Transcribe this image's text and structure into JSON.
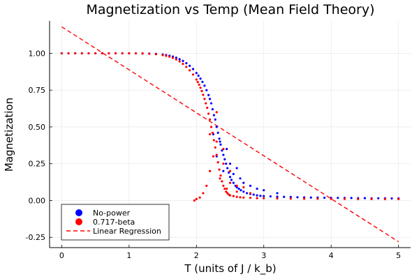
{
  "chart_data": {
    "type": "scatter",
    "title": "Magnetization vs Temp (Mean Field Theory)",
    "xlabel": "T (units of J / k_b)",
    "ylabel": "Magnetization",
    "xlim": [
      -0.18,
      5.18
    ],
    "ylim": [
      -0.32,
      1.22
    ],
    "xticks": [
      0,
      1,
      2,
      3,
      4,
      5
    ],
    "xtick_labels": [
      "0",
      "1",
      "2",
      "3",
      "4",
      "5"
    ],
    "yticks": [
      -0.25,
      0.0,
      0.25,
      0.5,
      0.75,
      1.0
    ],
    "ytick_labels": [
      "-0.25",
      "0.00",
      "0.25",
      "0.50",
      "0.75",
      "1.00"
    ],
    "grid": true,
    "legend_position": "bottom-left",
    "series": [
      {
        "name": "No-power",
        "kind": "scatter",
        "color": "#0000ff",
        "x": [
          0.0,
          0.1,
          0.2,
          0.3,
          0.4,
          0.5,
          0.6,
          0.7,
          0.8,
          0.9,
          1.0,
          1.1,
          1.2,
          1.3,
          1.4,
          1.5,
          1.55,
          1.6,
          1.65,
          1.7,
          1.75,
          1.8,
          1.85,
          1.9,
          1.95,
          2.0,
          2.03,
          2.06,
          2.09,
          2.12,
          2.15,
          2.18,
          2.2,
          2.22,
          2.24,
          2.26,
          2.28,
          2.3,
          2.32,
          2.34,
          2.36,
          2.38,
          2.4,
          2.42,
          2.44,
          2.46,
          2.48,
          2.5,
          2.52,
          2.55,
          2.58,
          2.6,
          2.63,
          2.66,
          2.7,
          2.75,
          2.8,
          2.85,
          2.9,
          2.95,
          3.0,
          3.1,
          3.2,
          3.3,
          3.4,
          3.5,
          3.6,
          3.7,
          3.8,
          3.9,
          4.0,
          4.1,
          4.2,
          4.3,
          4.4,
          4.5,
          4.6,
          4.7,
          4.8,
          4.9,
          5.0,
          2.25,
          2.3,
          2.35,
          2.4,
          2.45,
          2.5,
          2.55,
          2.6,
          2.65,
          2.7,
          2.8,
          2.9,
          3.0,
          3.2
        ],
        "y": [
          1.0,
          1.0,
          1.0,
          1.0,
          1.0,
          1.0,
          1.0,
          1.0,
          1.0,
          1.0,
          1.0,
          1.0,
          0.999,
          0.998,
          0.996,
          0.992,
          0.988,
          0.984,
          0.978,
          0.97,
          0.96,
          0.948,
          0.933,
          0.915,
          0.893,
          0.866,
          0.848,
          0.828,
          0.806,
          0.78,
          0.75,
          0.716,
          0.69,
          0.66,
          0.62,
          0.58,
          0.55,
          0.5,
          0.46,
          0.42,
          0.38,
          0.34,
          0.31,
          0.28,
          0.25,
          0.22,
          0.19,
          0.16,
          0.14,
          0.12,
          0.1,
          0.09,
          0.08,
          0.07,
          0.06,
          0.05,
          0.045,
          0.04,
          0.035,
          0.032,
          0.03,
          0.028,
          0.026,
          0.025,
          0.024,
          0.022,
          0.021,
          0.02,
          0.02,
          0.019,
          0.018,
          0.018,
          0.017,
          0.017,
          0.016,
          0.016,
          0.015,
          0.015,
          0.015,
          0.014,
          0.014,
          0.45,
          0.3,
          0.4,
          0.2,
          0.35,
          0.25,
          0.18,
          0.22,
          0.15,
          0.12,
          0.1,
          0.08,
          0.07,
          0.05
        ]
      },
      {
        "name": "0.717-beta",
        "kind": "scatter",
        "color": "#ff0000",
        "x": [
          0.0,
          0.1,
          0.2,
          0.3,
          0.4,
          0.5,
          0.6,
          0.7,
          0.8,
          0.9,
          1.0,
          1.1,
          1.2,
          1.3,
          1.4,
          1.5,
          1.55,
          1.6,
          1.65,
          1.7,
          1.75,
          1.8,
          1.85,
          1.9,
          1.95,
          2.0,
          2.02,
          2.04,
          2.06,
          2.08,
          2.1,
          2.12,
          2.14,
          2.16,
          2.18,
          2.2,
          2.22,
          2.24,
          2.26,
          2.28,
          2.3,
          2.32,
          2.34,
          2.36,
          2.38,
          2.4,
          2.42,
          2.44,
          2.46,
          2.48,
          2.5,
          2.55,
          2.6,
          2.65,
          2.7,
          2.8,
          2.9,
          3.0,
          3.2,
          3.4,
          3.6,
          3.8,
          4.0,
          4.2,
          4.4,
          4.6,
          4.8,
          5.0,
          1.97,
          2.0,
          2.05,
          2.1,
          2.15,
          2.2,
          2.25,
          2.3,
          2.35,
          2.4,
          2.45,
          2.5,
          2.6,
          2.7,
          2.8,
          2.2,
          2.3,
          2.4,
          2.5,
          2.6
        ],
        "y": [
          1.0,
          1.0,
          1.0,
          1.0,
          1.0,
          1.0,
          1.0,
          1.0,
          1.0,
          1.0,
          1.0,
          1.0,
          0.999,
          0.997,
          0.994,
          0.988,
          0.983,
          0.977,
          0.969,
          0.958,
          0.945,
          0.928,
          0.908,
          0.884,
          0.856,
          0.822,
          0.805,
          0.787,
          0.766,
          0.744,
          0.718,
          0.69,
          0.66,
          0.63,
          0.59,
          0.55,
          0.5,
          0.46,
          0.41,
          0.36,
          0.31,
          0.26,
          0.21,
          0.17,
          0.13,
          0.1,
          0.08,
          0.06,
          0.05,
          0.04,
          0.035,
          0.03,
          0.025,
          0.022,
          0.02,
          0.018,
          0.016,
          0.015,
          0.014,
          0.013,
          0.012,
          0.012,
          0.011,
          0.011,
          0.01,
          0.01,
          0.01,
          0.01,
          0.0,
          0.01,
          0.02,
          0.05,
          0.1,
          0.2,
          0.3,
          0.4,
          0.15,
          0.25,
          0.08,
          0.12,
          0.06,
          0.09,
          0.05,
          0.45,
          0.6,
          0.35,
          0.2,
          0.1
        ]
      },
      {
        "name": "Linear Regression",
        "kind": "line",
        "style": "dashed",
        "color": "#ff0000",
        "x": [
          0.0,
          5.0
        ],
        "y": [
          1.18,
          -0.28
        ]
      }
    ]
  }
}
